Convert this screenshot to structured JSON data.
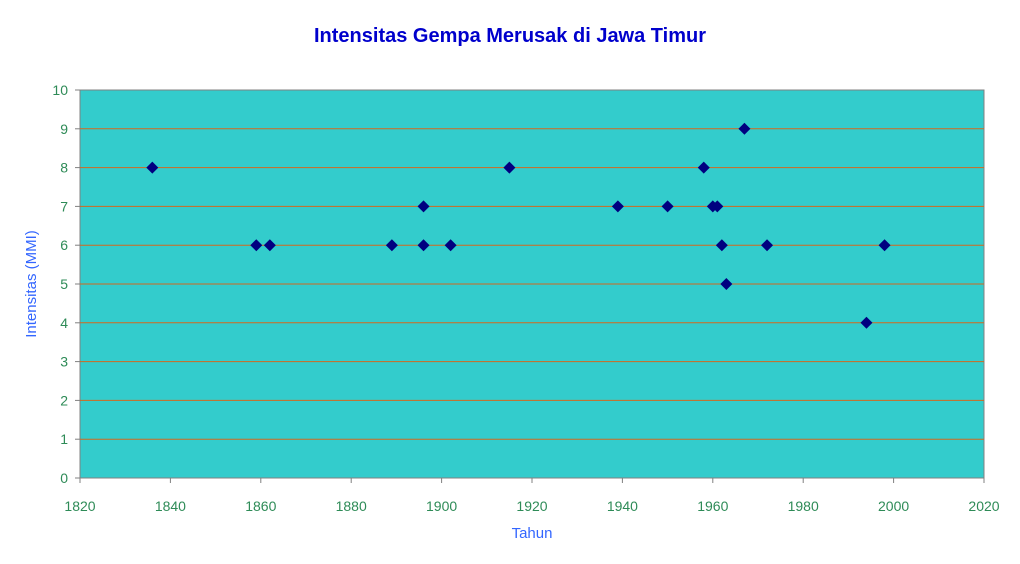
{
  "chart_data": {
    "type": "scatter",
    "title": "Intensitas Gempa Merusak di Jawa Timur",
    "xlabel": "Tahun",
    "ylabel": "Intensitas (MMI)",
    "xlim": [
      1820,
      2020
    ],
    "ylim": [
      0,
      10
    ],
    "xticks": [
      "1820",
      "1840",
      "1860",
      "1880",
      "1900",
      "1920",
      "1940",
      "1960",
      "1980",
      "2000",
      "2020"
    ],
    "yticks": [
      "0",
      "1",
      "2",
      "3",
      "4",
      "5",
      "6",
      "7",
      "8",
      "9",
      "10"
    ],
    "grid": true,
    "legend": "none",
    "points": [
      {
        "x": 1836,
        "y": 8
      },
      {
        "x": 1859,
        "y": 6
      },
      {
        "x": 1862,
        "y": 6
      },
      {
        "x": 1889,
        "y": 6
      },
      {
        "x": 1896,
        "y": 6
      },
      {
        "x": 1896,
        "y": 7
      },
      {
        "x": 1902,
        "y": 6
      },
      {
        "x": 1915,
        "y": 8
      },
      {
        "x": 1939,
        "y": 7
      },
      {
        "x": 1950,
        "y": 7
      },
      {
        "x": 1958,
        "y": 8
      },
      {
        "x": 1960,
        "y": 7
      },
      {
        "x": 1961,
        "y": 7
      },
      {
        "x": 1962,
        "y": 6
      },
      {
        "x": 1963,
        "y": 5
      },
      {
        "x": 1967,
        "y": 9
      },
      {
        "x": 1972,
        "y": 6
      },
      {
        "x": 1994,
        "y": 4
      },
      {
        "x": 1998,
        "y": 6
      }
    ]
  },
  "colors": {
    "plot_background": "#33CCCC",
    "gridline": "#D2691E",
    "marker": "#000080",
    "title": "#0000CC",
    "axis_label": "#3366FF",
    "tick_label": "#2E8B57"
  }
}
